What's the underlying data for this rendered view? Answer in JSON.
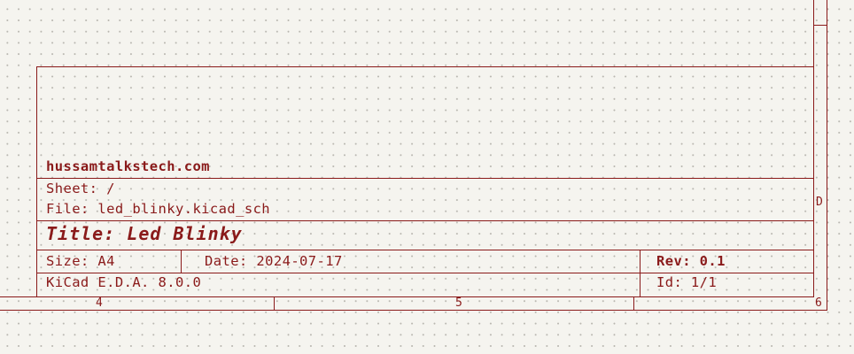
{
  "title_block": {
    "company": "hussamtalkstech.com",
    "sheet": "Sheet: /",
    "file": "File: led_blinky.kicad_sch",
    "title": "Title: Led Blinky",
    "size": "Size: A4",
    "date": "Date: 2024-07-17",
    "rev": "Rev: 0.1",
    "tool": "KiCad E.D.A. 8.0.0",
    "id": "Id: 1/1"
  },
  "border": {
    "row_label": "D",
    "column_labels": [
      "4",
      "5",
      "6"
    ]
  },
  "colors": {
    "frame": "#8a1a1a",
    "background": "#f5f4ef",
    "grid": "#b9b7b0"
  }
}
